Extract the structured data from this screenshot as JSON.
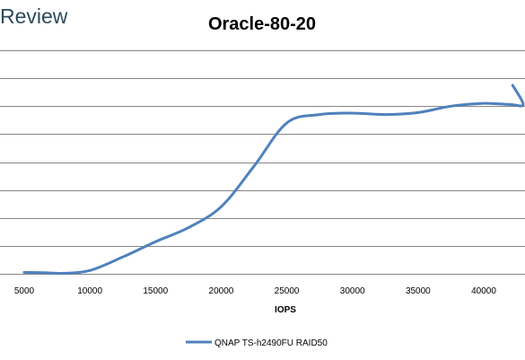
{
  "brand": {
    "text": "Review",
    "color": "#2b4a5a"
  },
  "chart_data": {
    "type": "line",
    "title": "Oracle-80-20",
    "xlabel": "IOPS",
    "ylabel": "",
    "xlim": [
      4000,
      43000
    ],
    "ylim": [
      0,
      8
    ],
    "x_ticks": [
      5000,
      10000,
      15000,
      20000,
      25000,
      30000,
      35000,
      40000
    ],
    "y_gridlines": [
      1,
      2,
      3,
      4,
      5,
      6,
      7,
      8
    ],
    "grid": "horizontal",
    "legend_position": "bottom",
    "series": [
      {
        "name": "QNAP TS-h2490FU RAID50",
        "color": "#4f81bd",
        "points": [
          [
            5000,
            0.05
          ],
          [
            6500,
            0.04
          ],
          [
            8000,
            0.02
          ],
          [
            10000,
            0.12
          ],
          [
            12500,
            0.6
          ],
          [
            15000,
            1.15
          ],
          [
            17500,
            1.65
          ],
          [
            20000,
            2.4
          ],
          [
            22500,
            3.85
          ],
          [
            25000,
            5.4
          ],
          [
            27500,
            5.7
          ],
          [
            30000,
            5.75
          ],
          [
            32500,
            5.7
          ],
          [
            35000,
            5.77
          ],
          [
            37500,
            6.0
          ],
          [
            40000,
            6.1
          ],
          [
            42000,
            6.06
          ],
          [
            43000,
            6.06
          ],
          [
            42200,
            6.75
          ]
        ]
      }
    ]
  }
}
